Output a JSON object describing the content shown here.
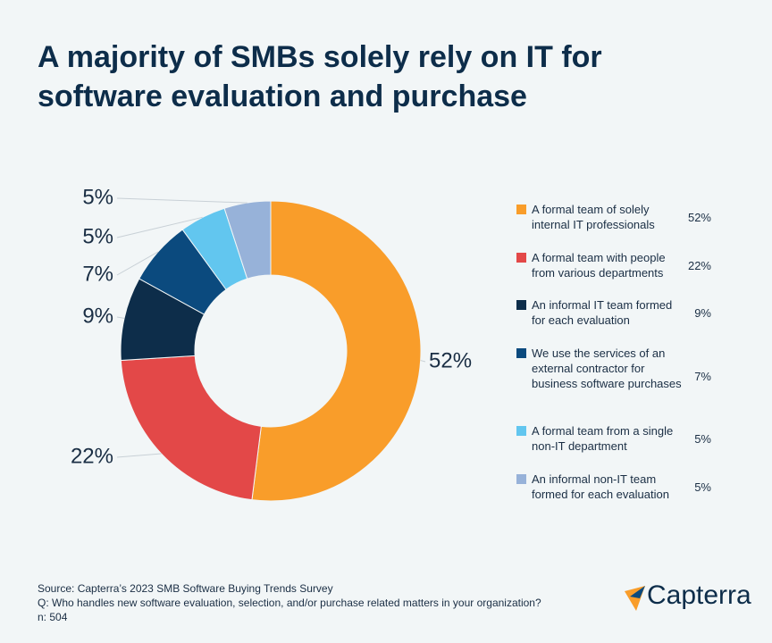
{
  "chart_data": {
    "type": "pie",
    "donut": true,
    "title": "A majority of SMBs solely rely on IT for software evaluation and purchase",
    "categories": [
      "A formal team of solely internal IT professionals",
      "A formal team with people from various departments",
      "An informal IT team formed for each evaluation",
      "We use the services of an external contractor for business software purchases",
      "A formal team from a single non-IT department",
      "An informal non-IT team formed for each evaluation"
    ],
    "values": [
      52,
      22,
      9,
      7,
      5,
      5
    ],
    "value_labels": [
      "52%",
      "22%",
      "9%",
      "7%",
      "5%",
      "5%"
    ],
    "colors": [
      "#f99d2a",
      "#e34848",
      "#0d2d4a",
      "#0b4a7e",
      "#62c6ef",
      "#97b2d9"
    ],
    "source": "Source: Capterra’s 2023 SMB Software Buying Trends Survey",
    "question": "Q: Who handles new software evaluation, selection, and/or purchase related matters in your organization?",
    "sample": "n: 504",
    "logo": "Capterra"
  }
}
